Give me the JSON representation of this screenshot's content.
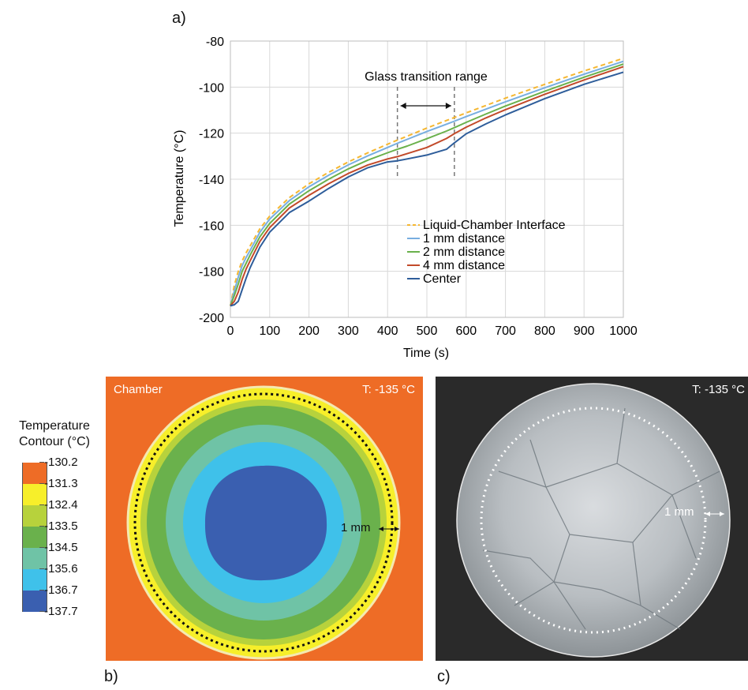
{
  "panel_labels": {
    "a": "a)",
    "b": "b)",
    "c": "c)"
  },
  "chart_data": {
    "type": "line",
    "xlabel": "Time (s)",
    "ylabel": "Temperature (°C)",
    "xlim": [
      0,
      1000
    ],
    "ylim": [
      -200,
      -80
    ],
    "xticks": [
      0,
      100,
      200,
      300,
      400,
      500,
      600,
      700,
      800,
      900,
      1000
    ],
    "yticks": [
      -200,
      -180,
      -160,
      -140,
      -120,
      -100,
      -80
    ],
    "grid": true,
    "legend_position": "bottom-right",
    "annotation": {
      "text": "Glass transition range",
      "x_start": 425,
      "x_end": 570
    },
    "x": [
      0,
      10,
      20,
      30,
      40,
      50,
      75,
      100,
      150,
      200,
      250,
      300,
      350,
      400,
      425,
      450,
      500,
      550,
      570,
      600,
      650,
      700,
      800,
      900,
      1000
    ],
    "series": [
      {
        "name": "Liquid-Chamber Interface",
        "color": "#f5b731",
        "dash": true,
        "values": [
          -195,
          -186,
          -180,
          -175.5,
          -172,
          -169,
          -161.5,
          -156,
          -148,
          -142,
          -137,
          -132.5,
          -128.5,
          -124.8,
          -123,
          -121.3,
          -117.8,
          -114.5,
          -113.2,
          -111.2,
          -108,
          -104.8,
          -98.8,
          -93,
          -87.5
        ]
      },
      {
        "name": "1 mm distance",
        "color": "#78aee0",
        "dash": false,
        "values": [
          -195,
          -188.5,
          -182.5,
          -177.5,
          -174,
          -171,
          -163,
          -157.3,
          -149.3,
          -143.3,
          -138.3,
          -133.8,
          -129.8,
          -126.2,
          -124.4,
          -122.7,
          -119.3,
          -116.1,
          -114.8,
          -112.8,
          -109.6,
          -106.4,
          -100.3,
          -94.4,
          -88.8
        ]
      },
      {
        "name": "2 mm distance",
        "color": "#6ab14c",
        "dash": false,
        "values": [
          -195,
          -190.5,
          -185.5,
          -180,
          -176.5,
          -173,
          -165,
          -159.2,
          -150.8,
          -145,
          -140,
          -135.5,
          -131.7,
          -128.5,
          -127,
          -125.6,
          -122.4,
          -119.1,
          -117.6,
          -115.3,
          -111.7,
          -108.2,
          -101.8,
          -95.7,
          -90
        ]
      },
      {
        "name": "4 mm distance",
        "color": "#c24a2a",
        "dash": false,
        "values": [
          -195,
          -193,
          -189,
          -183.5,
          -179,
          -175.5,
          -167,
          -161,
          -152.5,
          -147,
          -142,
          -137.5,
          -133.8,
          -131.2,
          -130.2,
          -128.9,
          -126.2,
          -122.3,
          -120.2,
          -117.4,
          -113.4,
          -109.8,
          -103.1,
          -96.9,
          -91.1
        ]
      },
      {
        "name": "Center",
        "color": "#2e5d9a",
        "dash": false,
        "values": [
          -195,
          -194.5,
          -193,
          -188,
          -183,
          -178.5,
          -169.5,
          -163,
          -154.5,
          -149.5,
          -144,
          -139,
          -135,
          -132.5,
          -132,
          -131.2,
          -129.5,
          -127,
          -124.2,
          -120.3,
          -116,
          -112.1,
          -105,
          -98.8,
          -93.5
        ]
      }
    ]
  },
  "contour_legend": {
    "title_line1": "Temperature",
    "title_line2": "Contour (°C)",
    "ticks": [
      "-130.2",
      "-131.3",
      "-132.4",
      "-133.5",
      "-134.5",
      "-135.6",
      "-136.7",
      "-137.7"
    ],
    "colors": [
      "#ee6c26",
      "#f7ef2a",
      "#b7d23c",
      "#6ab14c",
      "#6fc3a6",
      "#3fc1ea",
      "#3a5fb0"
    ]
  },
  "panel_b": {
    "chamber_label": "Chamber",
    "temp_label": "T: -135 °C",
    "distance_label": "1 mm"
  },
  "panel_c": {
    "temp_label": "T: -135 °C",
    "distance_label": "1 mm"
  }
}
